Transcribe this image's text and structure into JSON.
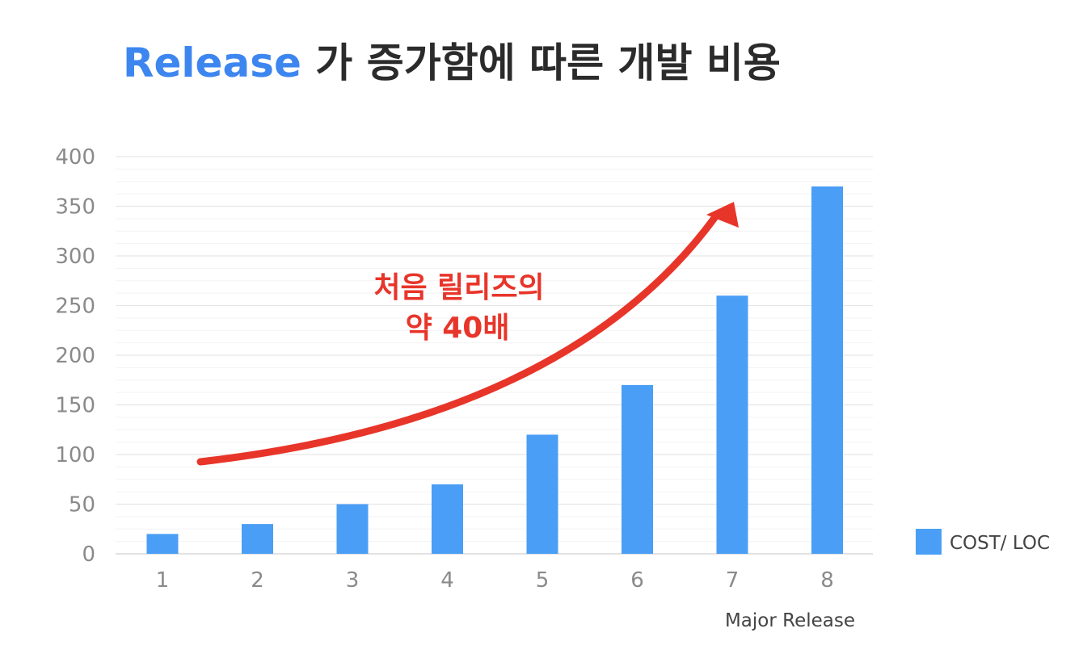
{
  "title": {
    "highlight": "Release",
    "rest": " 가 증가함에 따른 개발 비용"
  },
  "colors": {
    "highlight": "#3d86f0",
    "title": "#2b2b2b",
    "bar": "#4a9ef5",
    "annotation": "#e8352a",
    "grid": "#ececec",
    "axis": "#d8d8d8"
  },
  "annotation": {
    "line1": "처음 릴리즈의",
    "line2": "약 40배",
    "shape": "curved-arrow-up-right"
  },
  "chart_data": {
    "type": "bar",
    "categories": [
      "1",
      "2",
      "3",
      "4",
      "5",
      "6",
      "7",
      "8"
    ],
    "series": [
      {
        "name": "COST/ LOC",
        "values": [
          20,
          30,
          50,
          70,
          120,
          170,
          260,
          370
        ]
      }
    ],
    "xlabel": "Major Release",
    "ylabel": "",
    "ylim": [
      0,
      400
    ],
    "yticks": [
      "0",
      "50",
      "100",
      "150",
      "200",
      "250",
      "300",
      "350",
      "400"
    ],
    "grid": true,
    "legend": "right"
  }
}
